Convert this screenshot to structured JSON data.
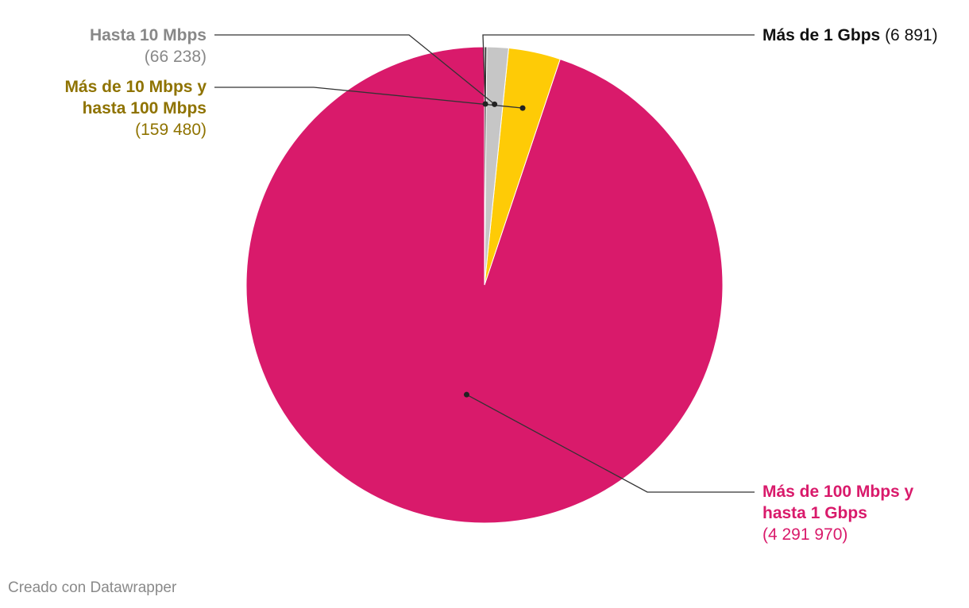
{
  "chart_data": {
    "type": "pie",
    "start_angle_deg": 0,
    "direction": "counterclockwise",
    "slices": [
      {
        "label_line1": "Más de 100 Mbps y",
        "label_line2": "hasta 1 Gbps",
        "value": 4291970,
        "value_text": "(4 291 970)",
        "color": "#d91a6b",
        "label_color": "#d91a6b"
      },
      {
        "label_line1": "Más de 10 Mbps y",
        "label_line2": "hasta 100 Mbps",
        "value": 159480,
        "value_text": "(159 480)",
        "color": "#fecb06",
        "label_color": "#8f7300"
      },
      {
        "label_line1": "Hasta 10 Mbps",
        "label_line2": "",
        "value": 66238,
        "value_text": "(66 238)",
        "color": "#c6c6c6",
        "label_color": "#888888"
      },
      {
        "label_line1": "Más de 1 Gbps",
        "label_line2": "",
        "value": 6891,
        "value_text": "(6 891)",
        "color": "#333333",
        "label_color": "#111111"
      }
    ]
  },
  "footer": "Creado con Datawrapper"
}
